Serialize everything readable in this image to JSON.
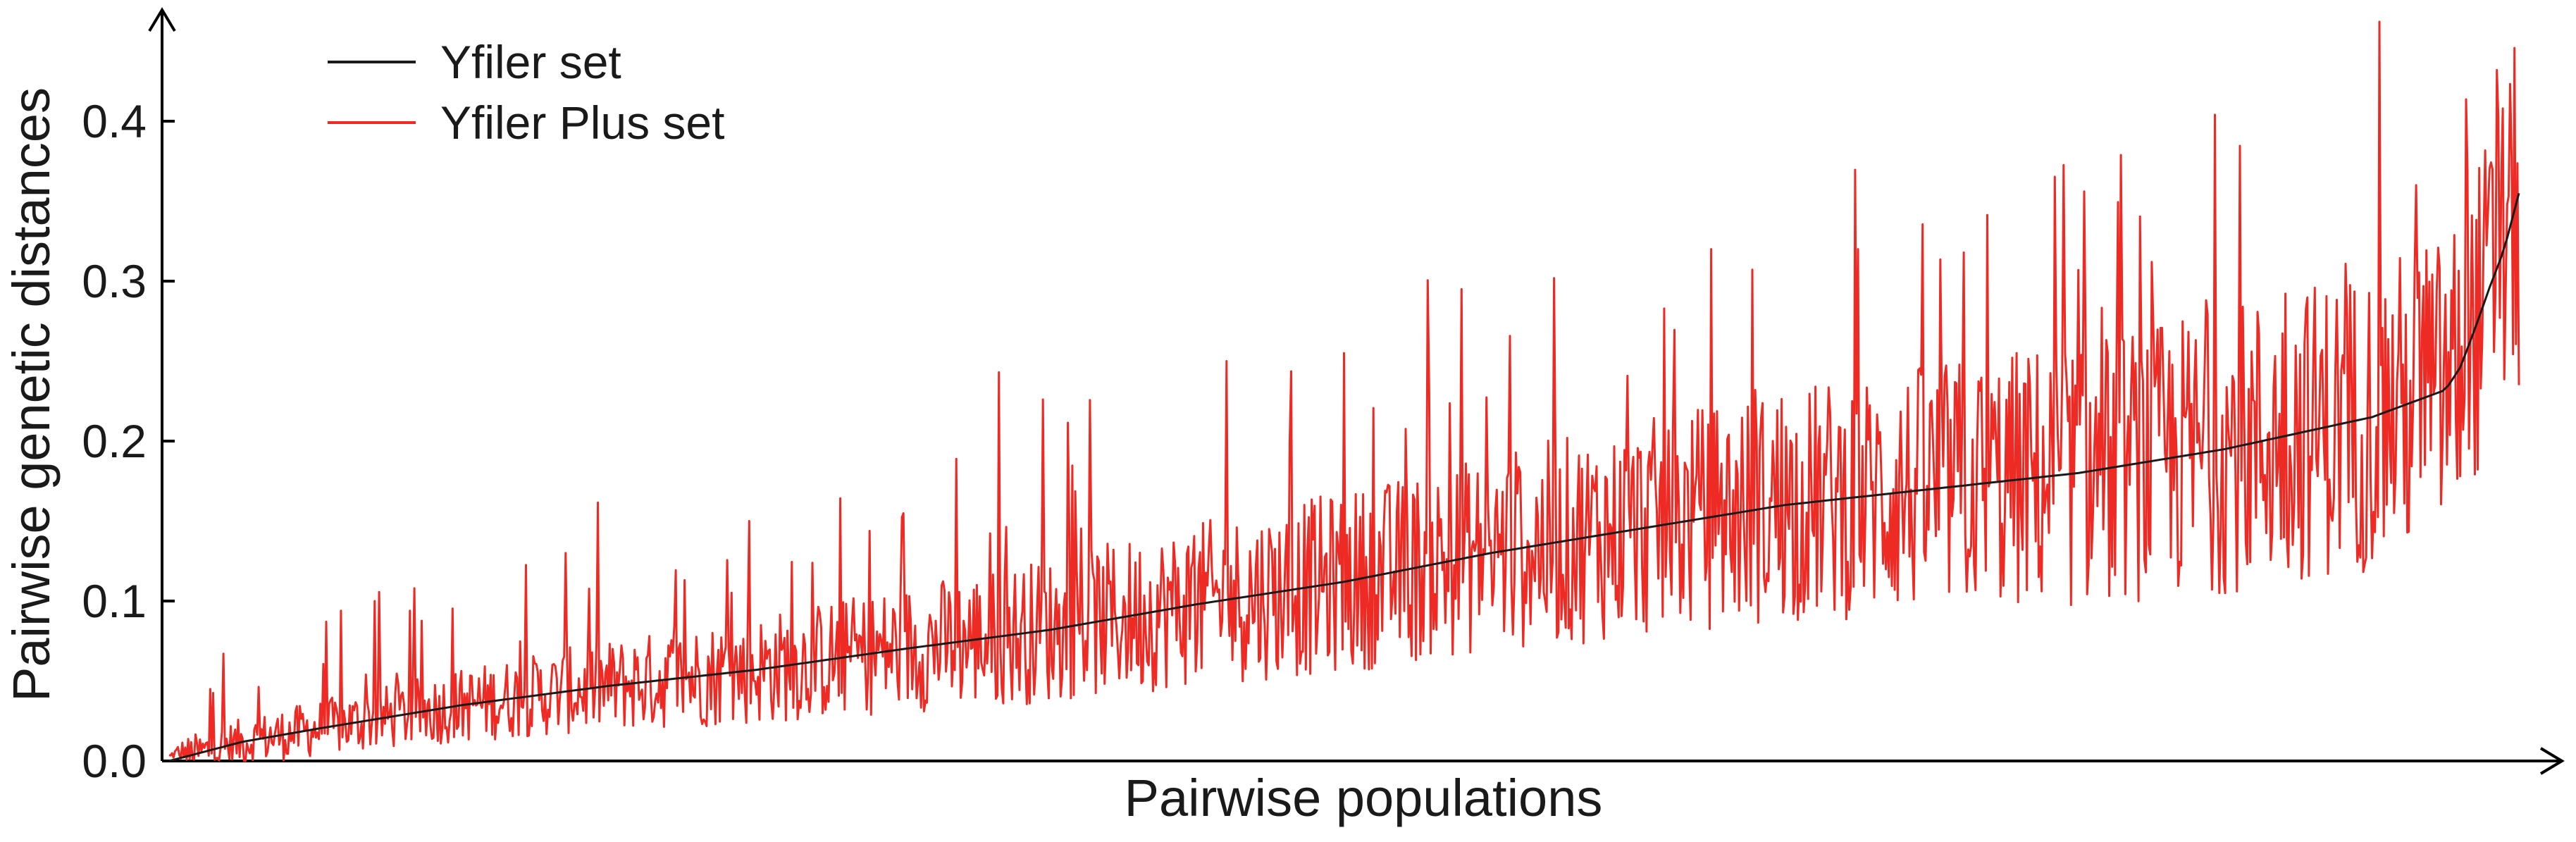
{
  "chart_data": {
    "type": "line",
    "title": "",
    "xlabel": "Pairwise populations",
    "ylabel": "Pairwise genetic distances",
    "xlim": [
      0,
      1700
    ],
    "ylim": [
      0.0,
      0.45
    ],
    "yticks": [
      {
        "value": 0.0,
        "label": "0.0"
      },
      {
        "value": 0.1,
        "label": "0.1"
      },
      {
        "value": 0.2,
        "label": "0.2"
      },
      {
        "value": 0.3,
        "label": "0.3"
      },
      {
        "value": 0.4,
        "label": "0.4"
      }
    ],
    "grid": false,
    "legend": "top-left",
    "point_count": 1600,
    "series": [
      {
        "name": "Yfiler set",
        "color": "#1a1a1a",
        "x": [
          0,
          50,
          100,
          200,
          300,
          400,
          500,
          600,
          700,
          800,
          900,
          1000,
          1100,
          1200,
          1300,
          1400,
          1450,
          1500,
          1550,
          1560,
          1570,
          1580,
          1590,
          1600
        ],
        "values": [
          0.0,
          0.012,
          0.02,
          0.035,
          0.047,
          0.057,
          0.07,
          0.082,
          0.098,
          0.112,
          0.13,
          0.145,
          0.16,
          0.17,
          0.18,
          0.195,
          0.205,
          0.215,
          0.232,
          0.246,
          0.27,
          0.296,
          0.32,
          0.355
        ]
      },
      {
        "name": "Yfiler Plus set",
        "color": "#ee2a24",
        "peaks": [
          {
            "x": 28,
            "value": 0.045
          },
          {
            "x": 140,
            "value": 0.1
          },
          {
            "x": 270,
            "value": 0.13
          },
          {
            "x": 395,
            "value": 0.15
          },
          {
            "x": 565,
            "value": 0.243
          },
          {
            "x": 595,
            "value": 0.226
          },
          {
            "x": 720,
            "value": 0.25
          },
          {
            "x": 800,
            "value": 0.255
          },
          {
            "x": 880,
            "value": 0.295
          },
          {
            "x": 1050,
            "value": 0.32
          },
          {
            "x": 1150,
            "value": 0.32
          },
          {
            "x": 1300,
            "value": 0.307
          },
          {
            "x": 1350,
            "value": 0.312
          },
          {
            "x": 1530,
            "value": 0.36
          },
          {
            "x": 1585,
            "value": 0.432
          },
          {
            "x": 1600,
            "value": 0.235
          }
        ]
      }
    ]
  }
}
